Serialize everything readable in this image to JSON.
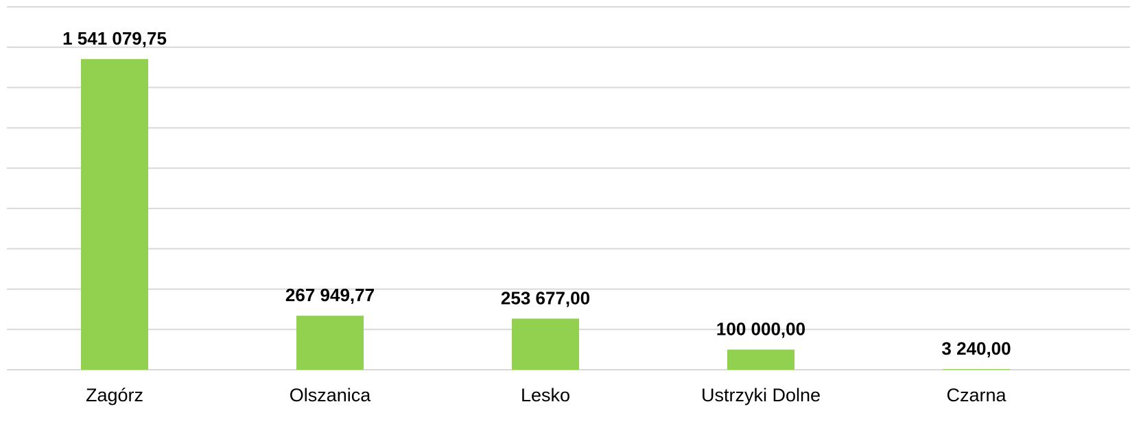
{
  "chart_data": {
    "type": "bar",
    "categories": [
      "Zagórz",
      "Olszanica",
      "Lesko",
      "Ustrzyki Dolne",
      "Czarna"
    ],
    "values": [
      1541079.75,
      267949.77,
      253677,
      100000,
      3240
    ],
    "value_labels": [
      "1 541 079,75",
      "267 949,77",
      "253 677,00",
      "100 000,00",
      "3 240,00"
    ],
    "color": "#92d050",
    "ylim": [
      0,
      1800000
    ],
    "yticks": [
      0,
      200000,
      400000,
      600000,
      800000,
      1000000,
      1200000,
      1400000,
      1600000,
      1800000
    ],
    "grid": true
  }
}
